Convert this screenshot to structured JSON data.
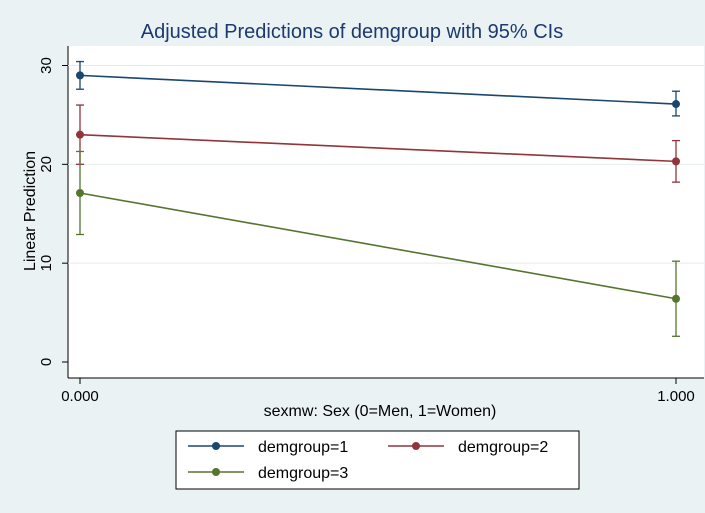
{
  "chart_data": {
    "type": "line",
    "title": "Adjusted Predictions of demgroup with 95% CIs",
    "xlabel": "sexmw: Sex (0=Men, 1=Women)",
    "ylabel": "Linear Prediction",
    "x": [
      0,
      1
    ],
    "x_tick_labels": [
      "0.000",
      "1.000"
    ],
    "ylim": [
      0,
      30
    ],
    "y_ticks": [
      0,
      10,
      20,
      30
    ],
    "y_tick_labels": [
      "0",
      "10",
      "20",
      "30"
    ],
    "grid": true,
    "legend_position": "bottom",
    "series": [
      {
        "name": "demgroup=1",
        "color": "#1a476f",
        "values": [
          29.0,
          26.1
        ],
        "ci_low": [
          27.6,
          24.9
        ],
        "ci_high": [
          30.4,
          27.4
        ]
      },
      {
        "name": "demgroup=2",
        "color": "#90353b",
        "values": [
          23.0,
          20.3
        ],
        "ci_low": [
          20.0,
          18.2
        ],
        "ci_high": [
          26.0,
          22.4
        ]
      },
      {
        "name": "demgroup=3",
        "color": "#55752f",
        "values": [
          17.1,
          6.4
        ],
        "ci_low": [
          12.9,
          2.6
        ],
        "ci_high": [
          21.3,
          10.2
        ]
      }
    ]
  }
}
